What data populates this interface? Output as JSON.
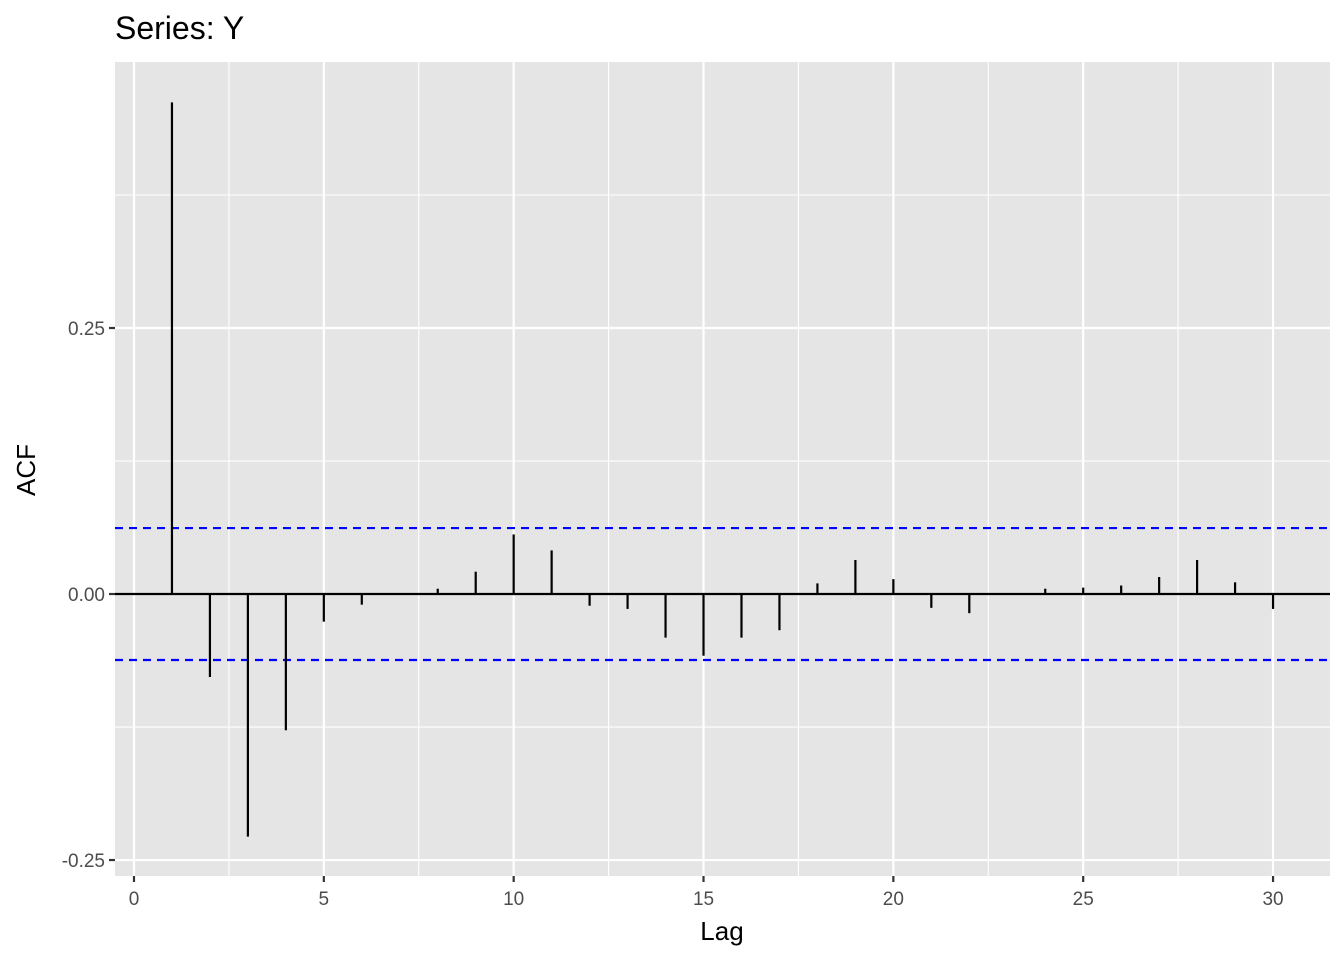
{
  "chart_data": {
    "type": "bar",
    "title": "Series: Y",
    "xlabel": "Lag",
    "ylabel": "ACF",
    "xlim": [
      -0.5,
      31.5
    ],
    "ylim": [
      -0.265,
      0.5
    ],
    "x_ticks": [
      0,
      5,
      10,
      15,
      20,
      25,
      30
    ],
    "x_tick_labels": [
      "0",
      "5",
      "10",
      "15",
      "20",
      "25",
      "30"
    ],
    "y_ticks": [
      -0.25,
      0.0,
      0.25
    ],
    "y_tick_labels": [
      "-0.25",
      "0.00",
      "0.25"
    ],
    "lags": [
      1,
      2,
      3,
      4,
      5,
      6,
      7,
      8,
      9,
      10,
      11,
      12,
      13,
      14,
      15,
      16,
      17,
      18,
      19,
      20,
      21,
      22,
      23,
      24,
      25,
      26,
      27,
      28,
      29,
      30
    ],
    "values": [
      0.462,
      -0.078,
      -0.228,
      -0.128,
      -0.026,
      -0.01,
      0.0,
      0.005,
      0.021,
      0.056,
      0.041,
      -0.011,
      -0.014,
      -0.041,
      -0.058,
      -0.041,
      -0.034,
      0.01,
      0.032,
      0.014,
      -0.013,
      -0.018,
      0.0,
      0.005,
      0.006,
      0.008,
      0.016,
      0.032,
      0.011,
      -0.014
    ],
    "confidence_bound": 0.062,
    "grid": true,
    "colors": {
      "panel_background": "#e5e5e5",
      "grid": "#ffffff",
      "bars": "#000000",
      "confidence_lines": "#0000ff",
      "tick_text": "#4d4d4d"
    }
  }
}
